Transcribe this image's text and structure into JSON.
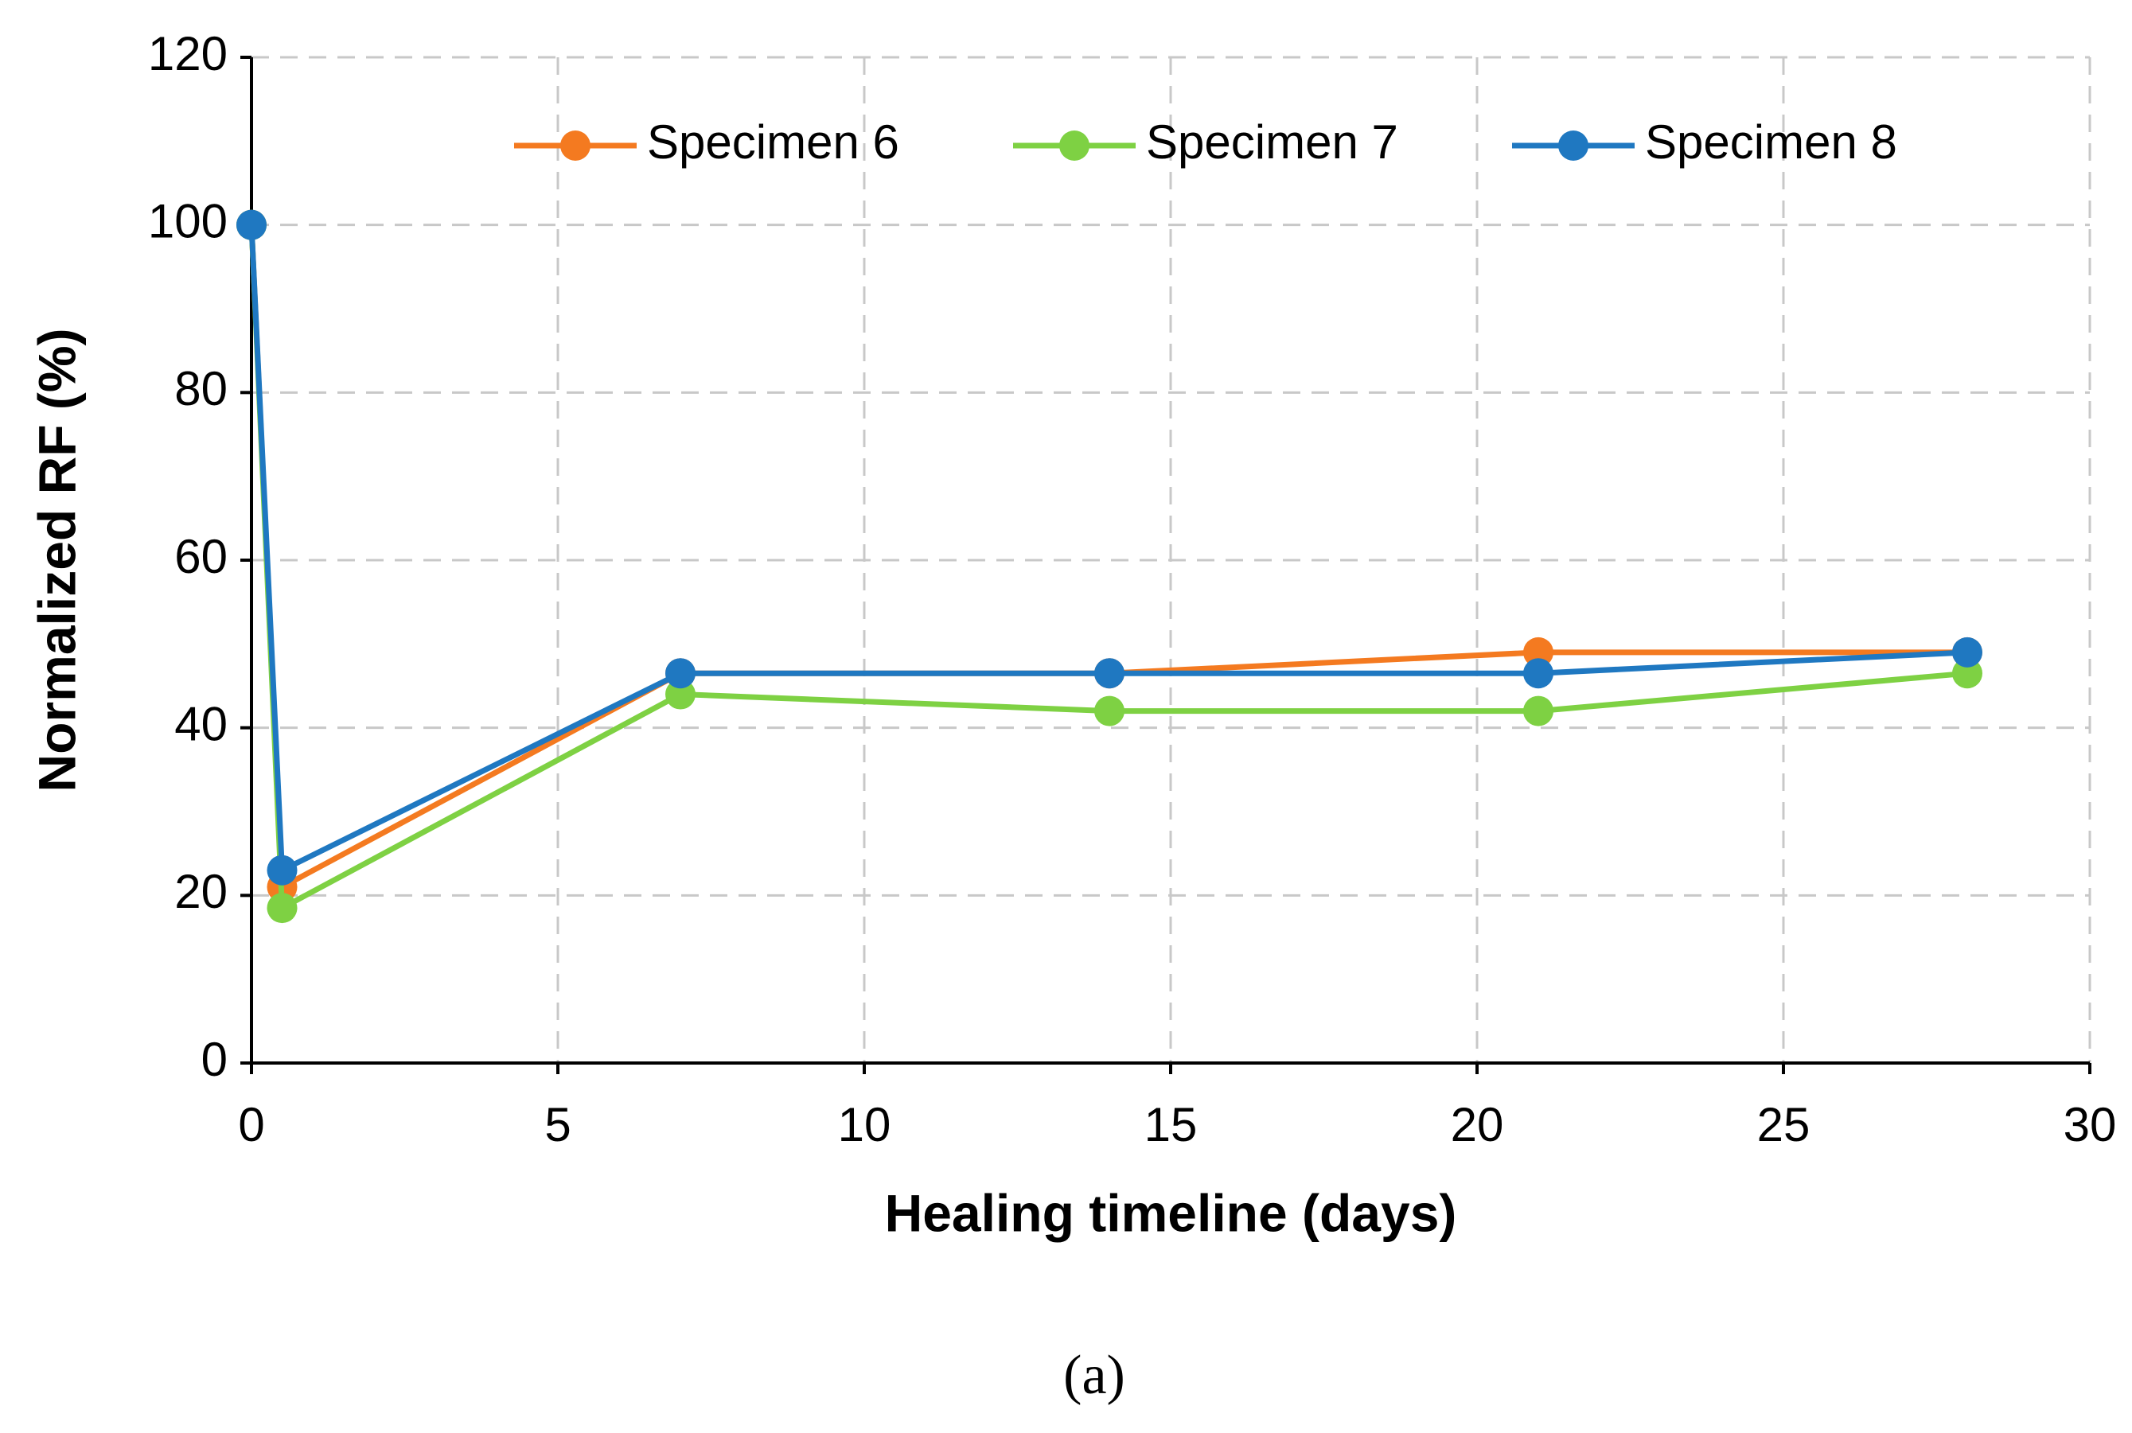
{
  "chart_data": {
    "type": "line",
    "xlabel": "Healing timeline (days)",
    "ylabel": "Normalized RF (%)",
    "caption": "(a)",
    "x": [
      0,
      0.5,
      7,
      14,
      21,
      28
    ],
    "series": [
      {
        "name": "Specimen 6",
        "color": "#f47a20",
        "values": [
          100,
          21,
          46.5,
          46.5,
          49,
          49
        ]
      },
      {
        "name": "Specimen 7",
        "color": "#7ed143",
        "values": [
          100,
          18.5,
          44,
          42,
          42,
          46.5
        ]
      },
      {
        "name": "Specimen 8",
        "color": "#1f78c1",
        "values": [
          100,
          23,
          46.5,
          46.5,
          46.5,
          49
        ]
      }
    ],
    "xlim": [
      0,
      30
    ],
    "xticks": [
      0,
      5,
      10,
      15,
      20,
      25,
      30
    ],
    "ylim": [
      0,
      120
    ],
    "yticks": [
      0,
      20,
      40,
      60,
      80,
      100,
      120
    ],
    "grid": true,
    "legend": "top"
  }
}
